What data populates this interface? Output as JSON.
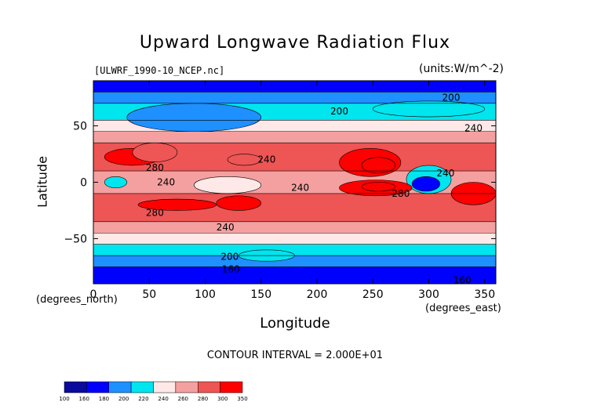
{
  "chart_data": {
    "type": "heatmap",
    "title": "Upward Longwave Radiation Flux",
    "file_label": "[ULWRF_1990-10_NCEP.nc]",
    "units_label": "(units:W/m^-2)",
    "xlabel": "Longitude",
    "ylabel": "Latitude",
    "x_units_label": "(degrees_north)",
    "y_units_label": "(degrees_east)",
    "xlim": [
      0,
      360
    ],
    "ylim": [
      -90,
      90
    ],
    "x_ticks": [
      0,
      50,
      100,
      150,
      200,
      250,
      300,
      350
    ],
    "y_ticks": [
      -50,
      0,
      50
    ],
    "contour_interval_text": "CONTOUR INTERVAL = 2.000E+01",
    "contour_labels": [
      {
        "text": "200",
        "x": 220,
        "y": 63
      },
      {
        "text": "200",
        "x": 320,
        "y": 75
      },
      {
        "text": "240",
        "x": 340,
        "y": 48
      },
      {
        "text": "280",
        "x": 55,
        "y": 13
      },
      {
        "text": "240",
        "x": 65,
        "y": 0
      },
      {
        "text": "240",
        "x": 155,
        "y": 20
      },
      {
        "text": "240",
        "x": 185,
        "y": -5
      },
      {
        "text": "280",
        "x": 275,
        "y": -10
      },
      {
        "text": "240",
        "x": 315,
        "y": 8
      },
      {
        "text": "280",
        "x": 55,
        "y": -27
      },
      {
        "text": "240",
        "x": 118,
        "y": -40
      },
      {
        "text": "200",
        "x": 122,
        "y": -66
      },
      {
        "text": "160",
        "x": 123,
        "y": -77
      },
      {
        "text": "160",
        "x": 330,
        "y": -87
      }
    ],
    "levels": [
      100,
      160,
      180,
      200,
      220,
      240,
      260,
      280,
      300,
      350
    ],
    "colors": [
      "#0a0a9c",
      "#0000ff",
      "#1e90ff",
      "#00e5ee",
      "#ffe8e8",
      "#f4a0a0",
      "#ee5555",
      "#ff0000"
    ],
    "bands": [
      {
        "lat": [
          80,
          90
        ],
        "value": 170
      },
      {
        "lat": [
          70,
          80
        ],
        "value": 190
      },
      {
        "lat": [
          55,
          70
        ],
        "value": 210
      },
      {
        "lat": [
          45,
          55
        ],
        "value": 230
      },
      {
        "lat": [
          35,
          45
        ],
        "value": 250
      },
      {
        "lat": [
          10,
          35
        ],
        "value": 270
      },
      {
        "lat": [
          -10,
          10
        ],
        "value": 250
      },
      {
        "lat": [
          -35,
          -10
        ],
        "value": 270
      },
      {
        "lat": [
          -45,
          -35
        ],
        "value": 250
      },
      {
        "lat": [
          -55,
          -45
        ],
        "value": 230
      },
      {
        "lat": [
          -65,
          -55
        ],
        "value": 210
      },
      {
        "lat": [
          -75,
          -65
        ],
        "value": 190
      },
      {
        "lat": [
          -90,
          -75
        ],
        "value": 170
      }
    ],
    "features": [
      {
        "lon": [
          10,
          60
        ],
        "lat": [
          15,
          30
        ],
        "value": 290
      },
      {
        "lon": [
          35,
          75
        ],
        "lat": [
          18,
          35
        ],
        "value": 275
      },
      {
        "lon": [
          120,
          150
        ],
        "lat": [
          15,
          25
        ],
        "value": 275
      },
      {
        "lon": [
          220,
          275
        ],
        "lat": [
          5,
          30
        ],
        "value": 285
      },
      {
        "lon": [
          240,
          270
        ],
        "lat": [
          8,
          22
        ],
        "value": 295
      },
      {
        "lon": [
          10,
          30
        ],
        "lat": [
          -5,
          5
        ],
        "value": 210
      },
      {
        "lon": [
          90,
          150
        ],
        "lat": [
          -10,
          5
        ],
        "value": 225
      },
      {
        "lon": [
          280,
          320
        ],
        "lat": [
          -10,
          15
        ],
        "value": 215
      },
      {
        "lon": [
          285,
          310
        ],
        "lat": [
          -8,
          5
        ],
        "value": 170
      },
      {
        "lon": [
          220,
          285
        ],
        "lat": [
          -12,
          2
        ],
        "value": 285
      },
      {
        "lon": [
          110,
          150
        ],
        "lat": [
          -25,
          -12
        ],
        "value": 295
      },
      {
        "lon": [
          40,
          110
        ],
        "lat": [
          -25,
          -15
        ],
        "value": 285
      },
      {
        "lon": [
          320,
          360
        ],
        "lat": [
          -20,
          0
        ],
        "value": 280
      },
      {
        "lon": [
          240,
          270
        ],
        "lat": [
          -8,
          0
        ],
        "value": 300
      },
      {
        "lon": [
          30,
          150
        ],
        "lat": [
          45,
          70
        ],
        "value": 195
      },
      {
        "lon": [
          250,
          350
        ],
        "lat": [
          58,
          72
        ],
        "value": 215
      },
      {
        "lon": [
          130,
          180
        ],
        "lat": [
          -70,
          -60
        ],
        "value": 200
      }
    ]
  },
  "colorbar": {
    "tick_labels": [
      "100",
      "160",
      "180",
      "200",
      "220",
      "240",
      "260",
      "280",
      "300",
      "350"
    ]
  }
}
